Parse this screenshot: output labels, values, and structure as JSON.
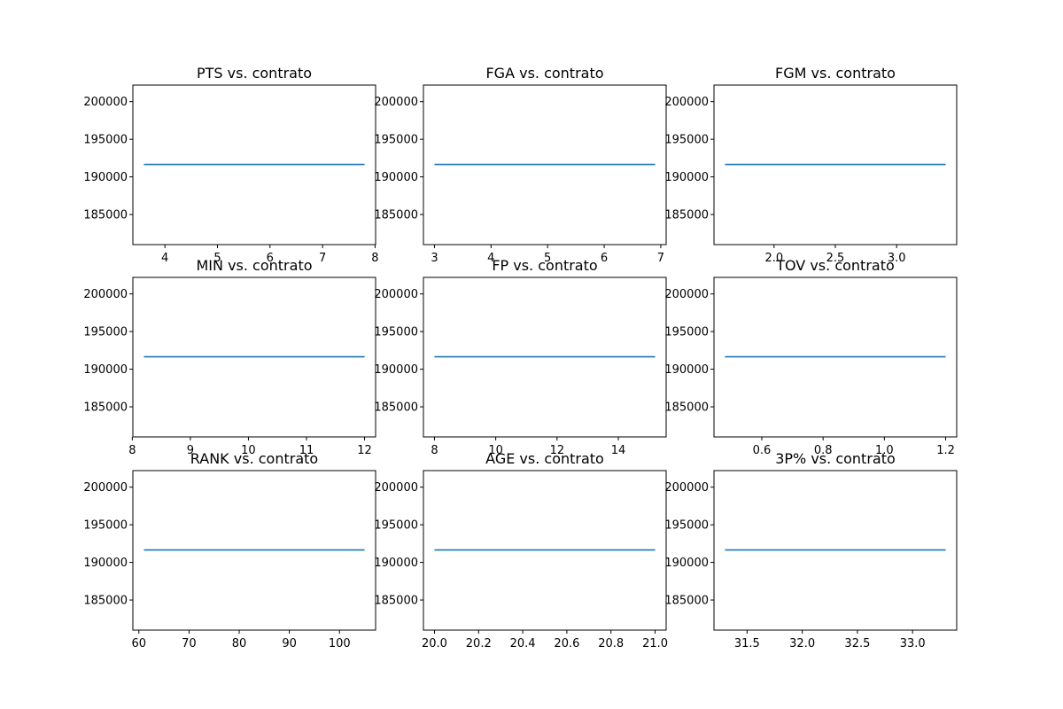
{
  "chart_data": [
    {
      "type": "line",
      "title": "PTS vs. contrato",
      "xlabel": "",
      "ylabel": "",
      "x": [
        3.6,
        7.8
      ],
      "series": [
        {
          "values": [
            191650,
            191650
          ]
        }
      ],
      "xlim": [
        3.39,
        8.01
      ],
      "ylim": [
        181000,
        202200
      ],
      "xticks": [
        4,
        5,
        6,
        7,
        8
      ],
      "yticks": [
        185000,
        190000,
        195000,
        200000
      ],
      "grid": false,
      "line_color": "#1f77b4"
    },
    {
      "type": "line",
      "title": "FGA vs. contrato",
      "xlabel": "",
      "ylabel": "",
      "x": [
        3.0,
        6.9
      ],
      "series": [
        {
          "values": [
            191650,
            191650
          ]
        }
      ],
      "xlim": [
        2.805,
        7.095
      ],
      "ylim": [
        181000,
        202200
      ],
      "xticks": [
        3,
        4,
        5,
        6,
        7
      ],
      "yticks": [
        185000,
        190000,
        195000,
        200000
      ],
      "grid": false,
      "line_color": "#1f77b4"
    },
    {
      "type": "line",
      "title": "FGM vs. contrato",
      "xlabel": "",
      "ylabel": "",
      "x": [
        1.6,
        3.4
      ],
      "series": [
        {
          "values": [
            191650,
            191650
          ]
        }
      ],
      "xlim": [
        1.51,
        3.49
      ],
      "ylim": [
        181000,
        202200
      ],
      "xticks": [
        2.0,
        2.5,
        3.0
      ],
      "xtick_labels": [
        "2.0",
        "2.5",
        "3.0"
      ],
      "yticks": [
        185000,
        190000,
        195000,
        200000
      ],
      "grid": false,
      "line_color": "#1f77b4"
    },
    {
      "type": "line",
      "title": "MIN vs. contrato",
      "xlabel": "",
      "ylabel": "",
      "x": [
        8.2,
        12.0
      ],
      "series": [
        {
          "values": [
            191650,
            191650
          ]
        }
      ],
      "xlim": [
        8.01,
        12.19
      ],
      "ylim": [
        181000,
        202200
      ],
      "xticks": [
        8,
        9,
        10,
        11,
        12
      ],
      "yticks": [
        185000,
        190000,
        195000,
        200000
      ],
      "grid": false,
      "line_color": "#1f77b4"
    },
    {
      "type": "line",
      "title": "FP vs. contrato",
      "xlabel": "",
      "ylabel": "",
      "x": [
        8.0,
        15.2
      ],
      "series": [
        {
          "values": [
            191650,
            191650
          ]
        }
      ],
      "xlim": [
        7.64,
        15.56
      ],
      "ylim": [
        181000,
        202200
      ],
      "xticks": [
        8,
        10,
        12,
        14
      ],
      "yticks": [
        185000,
        190000,
        195000,
        200000
      ],
      "grid": false,
      "line_color": "#1f77b4"
    },
    {
      "type": "line",
      "title": "TOV vs. contrato",
      "xlabel": "",
      "ylabel": "",
      "x": [
        0.48,
        1.2
      ],
      "series": [
        {
          "values": [
            191650,
            191650
          ]
        }
      ],
      "xlim": [
        0.444,
        1.236
      ],
      "ylim": [
        181000,
        202200
      ],
      "xticks": [
        0.6,
        0.8,
        1.0,
        1.2
      ],
      "xtick_labels": [
        "0.6",
        "0.8",
        "1.0",
        "1.2"
      ],
      "yticks": [
        185000,
        190000,
        195000,
        200000
      ],
      "grid": false,
      "line_color": "#1f77b4"
    },
    {
      "type": "line",
      "title": "RANK vs. contrato",
      "xlabel": "",
      "ylabel": "",
      "x": [
        61,
        105
      ],
      "series": [
        {
          "values": [
            191650,
            191650
          ]
        }
      ],
      "xlim": [
        58.8,
        107.2
      ],
      "ylim": [
        181000,
        202200
      ],
      "xticks": [
        60,
        70,
        80,
        90,
        100
      ],
      "yticks": [
        185000,
        190000,
        195000,
        200000
      ],
      "grid": false,
      "line_color": "#1f77b4"
    },
    {
      "type": "line",
      "title": "AGE vs. contrato",
      "xlabel": "",
      "ylabel": "",
      "x": [
        20.0,
        21.0
      ],
      "series": [
        {
          "values": [
            191650,
            191650
          ]
        }
      ],
      "xlim": [
        19.95,
        21.05
      ],
      "ylim": [
        181000,
        202200
      ],
      "xticks": [
        20.0,
        20.2,
        20.4,
        20.6,
        20.8,
        21.0
      ],
      "xtick_labels": [
        "20.0",
        "20.2",
        "20.4",
        "20.6",
        "20.8",
        "21.0"
      ],
      "yticks": [
        185000,
        190000,
        195000,
        200000
      ],
      "grid": false,
      "line_color": "#1f77b4"
    },
    {
      "type": "line",
      "title": "3P% vs. contrato",
      "xlabel": "",
      "ylabel": "",
      "x": [
        31.3,
        33.3
      ],
      "series": [
        {
          "values": [
            191650,
            191650
          ]
        }
      ],
      "xlim": [
        31.2,
        33.4
      ],
      "ylim": [
        181000,
        202200
      ],
      "xticks": [
        31.5,
        32.0,
        32.5,
        33.0
      ],
      "xtick_labels": [
        "31.5",
        "32.0",
        "32.5",
        "33.0"
      ],
      "yticks": [
        185000,
        190000,
        195000,
        200000
      ],
      "grid": false,
      "line_color": "#1f77b4"
    }
  ]
}
